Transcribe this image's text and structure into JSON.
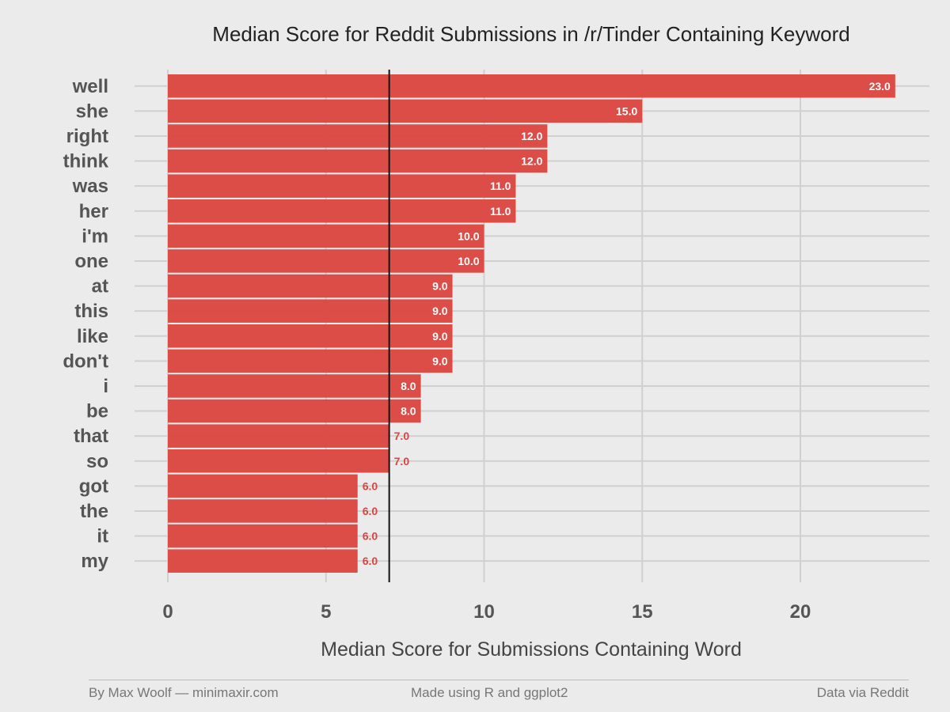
{
  "chart_data": {
    "type": "bar",
    "orientation": "horizontal",
    "title": "Median Score for Reddit Submissions in /r/Tinder Containing Keyword",
    "xlabel": "Median Score for Submissions Containing Word",
    "ylabel": "",
    "xlim": [
      0,
      23.5
    ],
    "x_ticks": [
      "0",
      "5",
      "10",
      "15",
      "20"
    ],
    "reference_line": 7,
    "categories": [
      "well",
      "she",
      "right",
      "think",
      "was",
      "her",
      "i'm",
      "one",
      "at",
      "this",
      "like",
      "don't",
      "i",
      "be",
      "that",
      "so",
      "got",
      "the",
      "it",
      "my"
    ],
    "values": [
      23,
      15,
      12,
      12,
      11,
      11,
      10,
      10,
      9,
      9,
      9,
      9,
      8,
      8,
      7,
      7,
      6,
      6,
      6,
      6
    ],
    "value_labels": [
      "23.0",
      "15.0",
      "12.0",
      "12.0",
      "11.0",
      "11.0",
      "10.0",
      "10.0",
      "9.0",
      "9.0",
      "9.0",
      "9.0",
      "8.0",
      "8.0",
      "7.0",
      "7.0",
      "6.0",
      "6.0",
      "6.0",
      "6.0"
    ],
    "grid": true,
    "bar_color": "#dc443f"
  },
  "footer": {
    "left": "By Max Woolf — minimaxir.com",
    "center": "Made using R and ggplot2",
    "right": "Data via Reddit"
  }
}
